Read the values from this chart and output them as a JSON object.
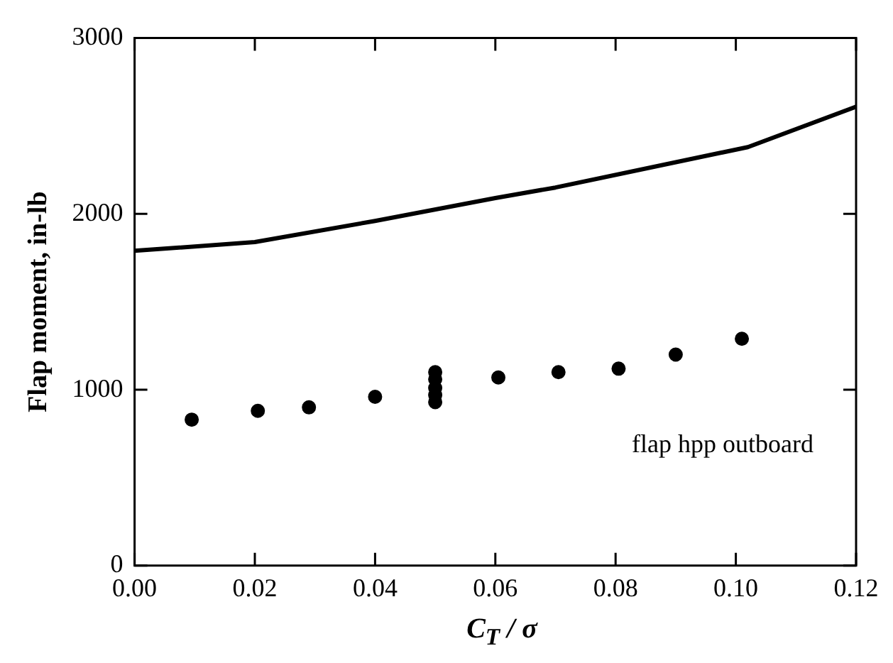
{
  "chart_data": {
    "type": "scatter",
    "xlabel": "C$_{T}$ / σ",
    "ylabel": "Flap moment, in-lb",
    "xlim": [
      0,
      0.12
    ],
    "xticks": [
      {
        "value": 0,
        "label": "0.00"
      },
      {
        "value": 0.02,
        "label": "0.02"
      },
      {
        "value": 0.04,
        "label": "0.04"
      },
      {
        "value": 0.06,
        "label": "0.06"
      },
      {
        "value": 0.08,
        "label": "0.08"
      },
      {
        "value": 0.1,
        "label": "0.10"
      },
      {
        "value": 0.12,
        "label": "0.12"
      }
    ],
    "ylim": [
      0,
      3000
    ],
    "yticks": [
      0,
      1000,
      2000,
      3000
    ],
    "grid": false,
    "legend": false,
    "marker": "circle",
    "annotations": [
      "flap hpp outboard"
    ],
    "series": [
      {
        "type": "line",
        "color": "#000000",
        "marker": "none",
        "x": [
          0,
          0.02,
          0.04,
          0.06,
          0.07,
          0.102,
          0.12
        ],
        "values": [
          1790,
          1840,
          1960,
          2090,
          2150,
          2380,
          2610
        ]
      },
      {
        "color": "#000000",
        "x": [
          0.0095,
          0.0205,
          0.029,
          0.04,
          0.05,
          0.05,
          0.05,
          0.05,
          0.05,
          0.0605,
          0.0705,
          0.0805,
          0.09,
          0.101
        ],
        "values": [
          830,
          880,
          900,
          960,
          1100,
          1060,
          1010,
          970,
          930,
          1070,
          1100,
          1120,
          1200,
          1290
        ]
      }
    ]
  }
}
